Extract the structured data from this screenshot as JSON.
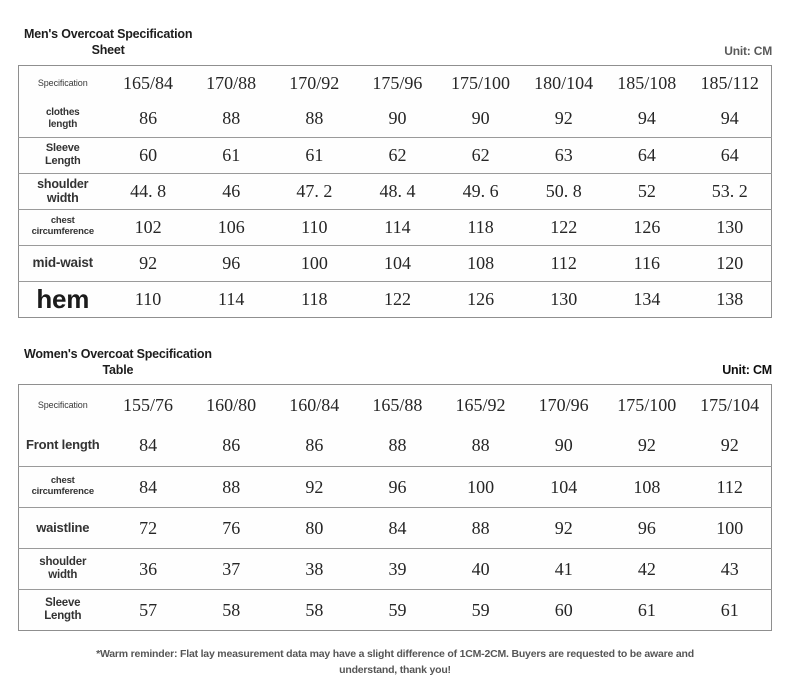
{
  "page": {
    "background": "#ffffff",
    "border_color": "#8f8f8f",
    "text_color": "#262626"
  },
  "mens": {
    "title_line1": "Men's Overcoat Specification",
    "title_line2": "Sheet",
    "unit_label": "Unit: CM",
    "corner_label": "Specification",
    "columns": [
      "165/84",
      "170/88",
      "170/92",
      "175/96",
      "175/100",
      "180/104",
      "185/108",
      "185/112"
    ],
    "rows": [
      {
        "label_lines": [
          "clothes",
          "length"
        ],
        "values": [
          "86",
          "88",
          "88",
          "90",
          "90",
          "92",
          "94",
          "94"
        ]
      },
      {
        "label_lines": [
          "Sleeve",
          "Length"
        ],
        "values": [
          "60",
          "61",
          "61",
          "62",
          "62",
          "63",
          "64",
          "64"
        ]
      },
      {
        "label_lines": [
          "shoulder",
          "width"
        ],
        "values": [
          "44. 8",
          "46",
          "47. 2",
          "48. 4",
          "49. 6",
          "50. 8",
          "52",
          "53. 2"
        ]
      },
      {
        "label_lines": [
          "chest",
          "circumference"
        ],
        "values": [
          "102",
          "106",
          "110",
          "114",
          "118",
          "122",
          "126",
          "130"
        ]
      },
      {
        "label_lines": [
          "mid-waist"
        ],
        "values": [
          "92",
          "96",
          "100",
          "104",
          "108",
          "112",
          "116",
          "120"
        ]
      },
      {
        "label_lines": [
          "hem"
        ],
        "values": [
          "110",
          "114",
          "118",
          "122",
          "126",
          "130",
          "134",
          "138"
        ]
      }
    ]
  },
  "womens": {
    "title_line1": "Women's Overcoat Specification",
    "title_line2": "Table",
    "unit_label": "Unit: CM",
    "corner_label": "Specification",
    "columns": [
      "155/76",
      "160/80",
      "160/84",
      "165/88",
      "165/92",
      "170/96",
      "175/100",
      "175/104"
    ],
    "rows": [
      {
        "label_lines": [
          "Front length"
        ],
        "values": [
          "84",
          "86",
          "86",
          "88",
          "88",
          "90",
          "92",
          "92"
        ]
      },
      {
        "label_lines": [
          "chest",
          "circumference"
        ],
        "values": [
          "84",
          "88",
          "92",
          "96",
          "100",
          "104",
          "108",
          "112"
        ]
      },
      {
        "label_lines": [
          "waistline"
        ],
        "values": [
          "72",
          "76",
          "80",
          "84",
          "88",
          "92",
          "96",
          "100"
        ]
      },
      {
        "label_lines": [
          "shoulder",
          "width"
        ],
        "values": [
          "36",
          "37",
          "38",
          "39",
          "40",
          "41",
          "42",
          "43"
        ]
      },
      {
        "label_lines": [
          "Sleeve",
          "Length"
        ],
        "values": [
          "57",
          "58",
          "58",
          "59",
          "59",
          "60",
          "61",
          "61"
        ]
      }
    ]
  },
  "footer": {
    "note": "*Warm reminder: Flat lay measurement data may have a slight difference of 1CM-2CM. Buyers are requested to be aware and understand, thank you!"
  }
}
